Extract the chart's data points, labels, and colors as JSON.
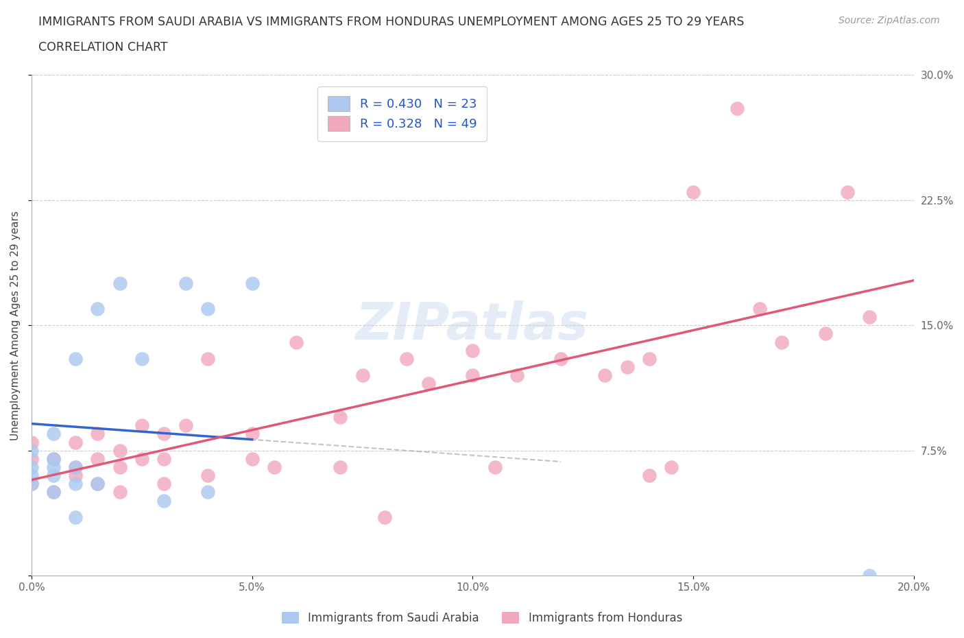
{
  "title_line1": "IMMIGRANTS FROM SAUDI ARABIA VS IMMIGRANTS FROM HONDURAS UNEMPLOYMENT AMONG AGES 25 TO 29 YEARS",
  "title_line2": "CORRELATION CHART",
  "source": "Source: ZipAtlas.com",
  "ylabel": "Unemployment Among Ages 25 to 29 years",
  "xlim": [
    0.0,
    0.2
  ],
  "ylim": [
    0.0,
    0.3
  ],
  "xticks": [
    0.0,
    0.05,
    0.1,
    0.15,
    0.2
  ],
  "xtick_labels": [
    "0.0%",
    "5.0%",
    "10.0%",
    "15.0%",
    "20.0%"
  ],
  "yticks": [
    0.0,
    0.075,
    0.15,
    0.225,
    0.3
  ],
  "ytick_labels": [
    "",
    "7.5%",
    "15.0%",
    "22.5%",
    "30.0%"
  ],
  "legend_r1": "R = 0.430",
  "legend_n1": "N = 23",
  "legend_r2": "R = 0.328",
  "legend_n2": "N = 49",
  "color_saudi": "#aac8f0",
  "color_honduras": "#f0a8bc",
  "trendline_saudi_color": "#3366cc",
  "trendline_honduras_color": "#e05878",
  "watermark": "ZIPatlas",
  "saudi_x": [
    0.0,
    0.0,
    0.0,
    0.0,
    0.005,
    0.005,
    0.005,
    0.005,
    0.005,
    0.01,
    0.01,
    0.01,
    0.01,
    0.015,
    0.015,
    0.02,
    0.025,
    0.03,
    0.035,
    0.04,
    0.04,
    0.05,
    0.19
  ],
  "saudi_y": [
    0.055,
    0.06,
    0.065,
    0.075,
    0.05,
    0.06,
    0.065,
    0.07,
    0.085,
    0.035,
    0.055,
    0.065,
    0.13,
    0.055,
    0.16,
    0.175,
    0.13,
    0.045,
    0.175,
    0.05,
    0.16,
    0.175,
    0.0
  ],
  "honduras_x": [
    0.0,
    0.0,
    0.0,
    0.005,
    0.005,
    0.01,
    0.01,
    0.01,
    0.015,
    0.015,
    0.015,
    0.02,
    0.02,
    0.02,
    0.025,
    0.025,
    0.03,
    0.03,
    0.03,
    0.035,
    0.04,
    0.04,
    0.05,
    0.05,
    0.055,
    0.06,
    0.07,
    0.07,
    0.075,
    0.08,
    0.085,
    0.09,
    0.1,
    0.1,
    0.105,
    0.11,
    0.12,
    0.13,
    0.135,
    0.14,
    0.14,
    0.145,
    0.15,
    0.16,
    0.165,
    0.17,
    0.18,
    0.185,
    0.19
  ],
  "honduras_y": [
    0.055,
    0.07,
    0.08,
    0.05,
    0.07,
    0.06,
    0.065,
    0.08,
    0.055,
    0.07,
    0.085,
    0.05,
    0.065,
    0.075,
    0.07,
    0.09,
    0.055,
    0.07,
    0.085,
    0.09,
    0.06,
    0.13,
    0.07,
    0.085,
    0.065,
    0.14,
    0.065,
    0.095,
    0.12,
    0.035,
    0.13,
    0.115,
    0.12,
    0.135,
    0.065,
    0.12,
    0.13,
    0.12,
    0.125,
    0.13,
    0.06,
    0.065,
    0.23,
    0.28,
    0.16,
    0.14,
    0.145,
    0.23,
    0.155
  ]
}
